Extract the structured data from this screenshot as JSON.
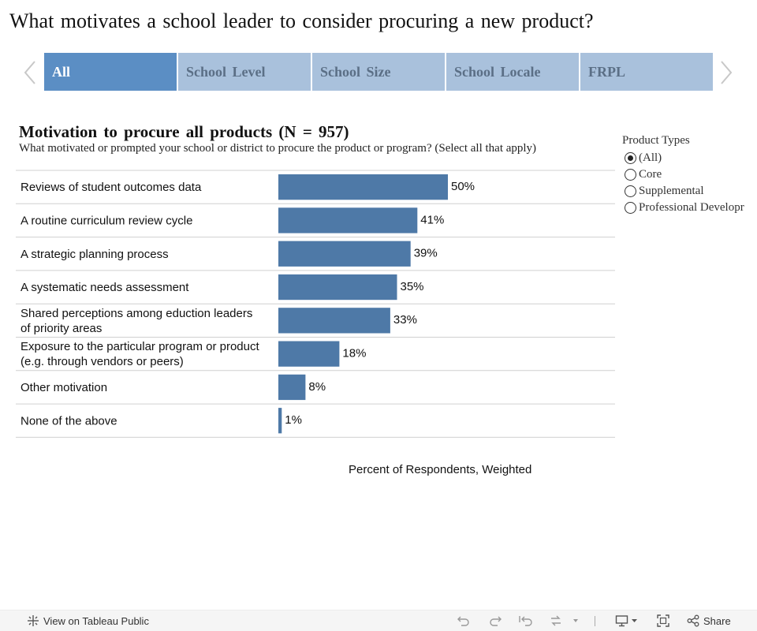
{
  "page": {
    "title": "What motivates a school leader to consider procuring a new product?"
  },
  "tabs": [
    {
      "label": "All",
      "active": true
    },
    {
      "label": "School Level",
      "active": false
    },
    {
      "label": "School Size",
      "active": false
    },
    {
      "label": "School Locale",
      "active": false
    },
    {
      "label": "FRPL",
      "active": false
    }
  ],
  "filter": {
    "title": "Product Types",
    "options": [
      {
        "label": "(All)",
        "selected": true
      },
      {
        "label": "Core",
        "selected": false
      },
      {
        "label": "Supplemental",
        "selected": false
      },
      {
        "label": "Professional Developr",
        "selected": false
      }
    ]
  },
  "colors": {
    "bar": "#4e79a7",
    "tab_active": "#5b8ec4",
    "tab_inactive": "#a9c1dc"
  },
  "chart_data": {
    "type": "bar",
    "orientation": "horizontal",
    "title": "Motivation to procure all products (N = 957)",
    "subtitle": "What motivated or prompted your school or district to procure the product or program? (Select all that apply)",
    "xlabel": "Percent of Respondents, Weighted",
    "ylabel": "",
    "categories": [
      [
        "Reviews of student outcomes data"
      ],
      [
        "A routine curriculum review cycle"
      ],
      [
        "A strategic planning process"
      ],
      [
        "A systematic needs assessment"
      ],
      [
        "Shared perceptions among eduction leaders",
        "of priority areas"
      ],
      [
        "Exposure to the particular program or product",
        "(e.g. through vendors or peers)"
      ],
      [
        "Other motivation"
      ],
      [
        "None of the above"
      ]
    ],
    "values": [
      50,
      41,
      39,
      35,
      33,
      18,
      8,
      1
    ],
    "data_labels": [
      "50%",
      "41%",
      "39%",
      "35%",
      "33%",
      "18%",
      "8%",
      "1%"
    ],
    "xlim": [
      0,
      100
    ],
    "grid": false
  },
  "footer": {
    "view_link": "View on Tableau Public",
    "share_label": "Share",
    "icons": [
      "undo-icon",
      "redo-icon",
      "revert-icon",
      "refresh-icon",
      "dropdown-caret-icon",
      "device-layout-icon",
      "fullscreen-icon",
      "share-icon"
    ]
  }
}
